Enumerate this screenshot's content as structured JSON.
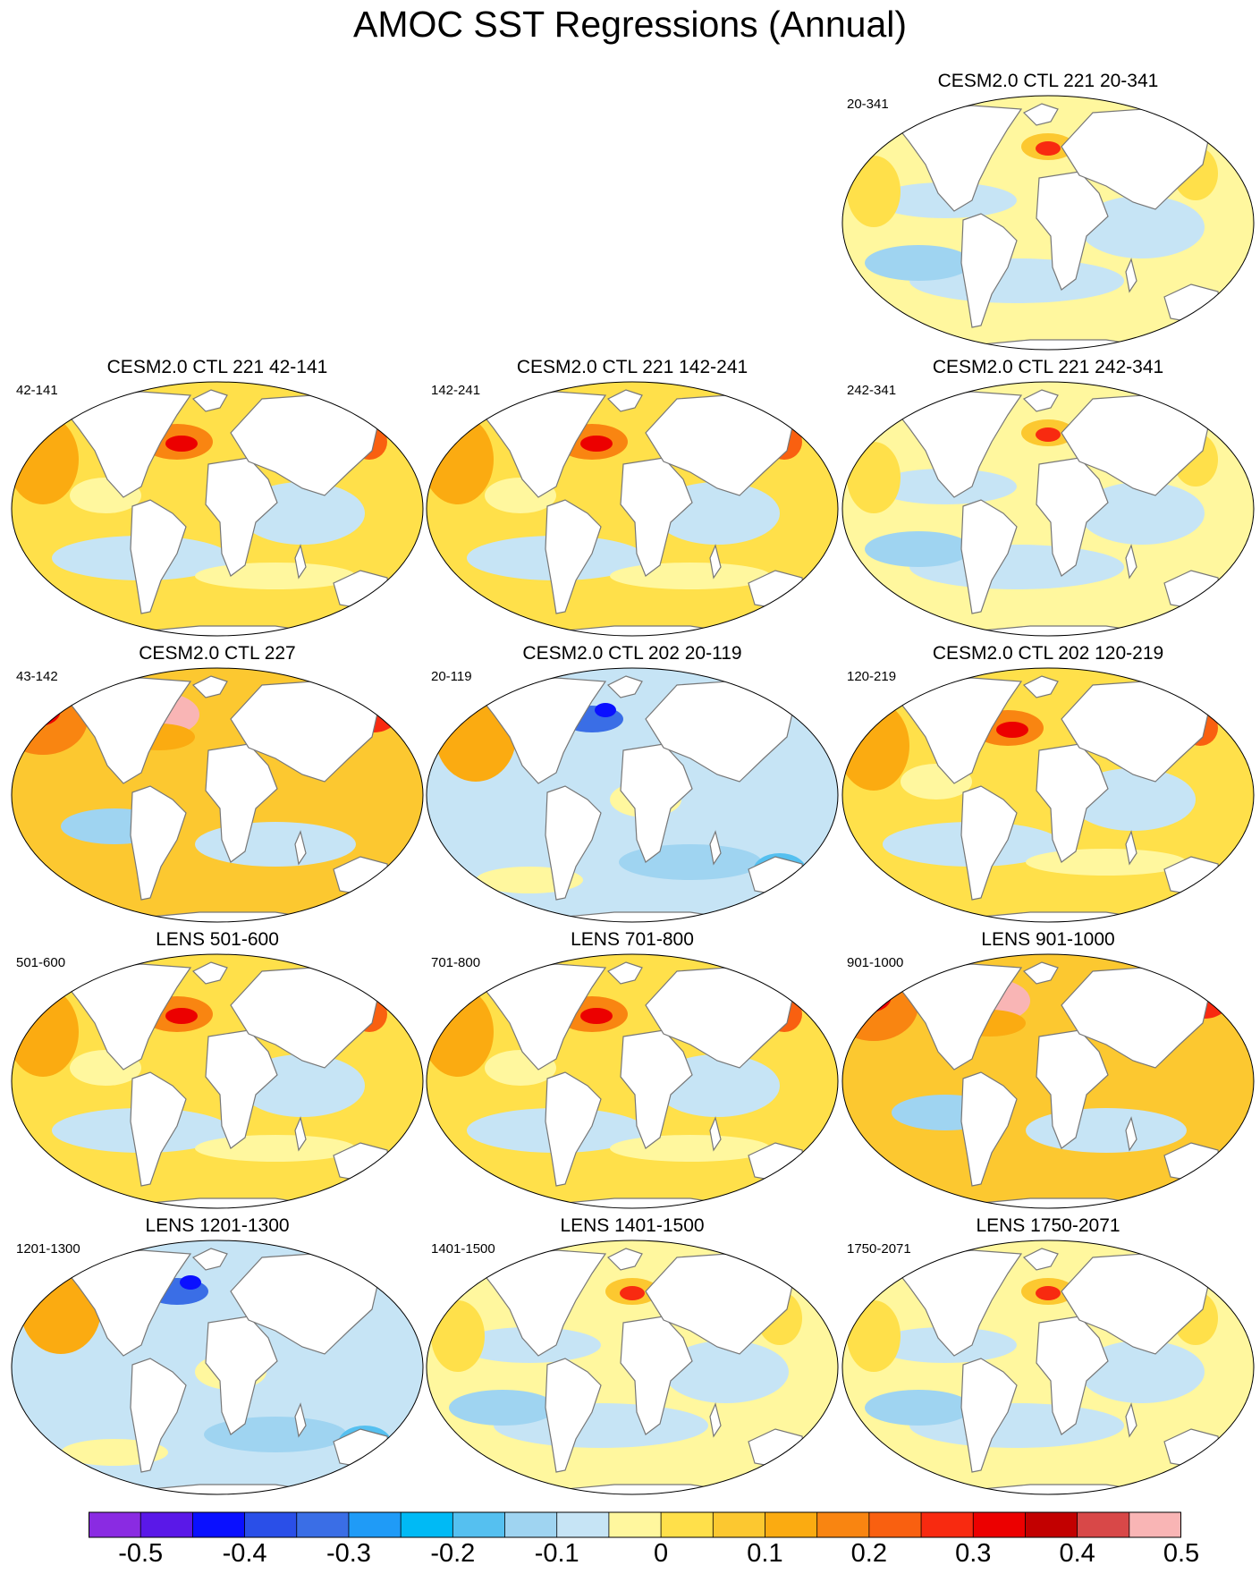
{
  "title": "AMOC SST Regressions (Annual)",
  "panels": [
    {
      "title": "CESM2.0 CTL 221 20-341",
      "label": "20-341",
      "row": 0,
      "col": 2,
      "pattern": "neutral"
    },
    {
      "title": "CESM2.0 CTL 221 42-141",
      "label": "42-141",
      "row": 1,
      "col": 0,
      "pattern": "warm"
    },
    {
      "title": "CESM2.0 CTL 221 142-241",
      "label": "142-241",
      "row": 1,
      "col": 1,
      "pattern": "warm"
    },
    {
      "title": "CESM2.0 CTL 221 242-341",
      "label": "242-341",
      "row": 1,
      "col": 2,
      "pattern": "neutral"
    },
    {
      "title": "CESM2.0 CTL 227",
      "label": "43-142",
      "row": 2,
      "col": 0,
      "pattern": "strong"
    },
    {
      "title": "CESM2.0 CTL 202 20-119",
      "label": "20-119",
      "row": 2,
      "col": 1,
      "pattern": "cool"
    },
    {
      "title": "CESM2.0 CTL 202 120-219",
      "label": "120-219",
      "row": 2,
      "col": 2,
      "pattern": "warm"
    },
    {
      "title": "LENS 501-600",
      "label": "501-600",
      "row": 3,
      "col": 0,
      "pattern": "warm"
    },
    {
      "title": "LENS 701-800",
      "label": "701-800",
      "row": 3,
      "col": 1,
      "pattern": "warm"
    },
    {
      "title": "LENS 901-1000",
      "label": "901-1000",
      "row": 3,
      "col": 2,
      "pattern": "strong"
    },
    {
      "title": "LENS 1201-1300",
      "label": "1201-1300",
      "row": 4,
      "col": 0,
      "pattern": "cool"
    },
    {
      "title": "LENS 1401-1500",
      "label": "1401-1500",
      "row": 4,
      "col": 1,
      "pattern": "neutral"
    },
    {
      "title": "LENS 1750-2071",
      "label": "1750-2071",
      "row": 4,
      "col": 2,
      "pattern": "neutral"
    }
  ],
  "colorbar": {
    "colors": [
      "#8a2be2",
      "#5a18e8",
      "#0a10ff",
      "#2a4fe8",
      "#3a6ee6",
      "#1f9bf7",
      "#00baf5",
      "#55c0f0",
      "#9fd4f1",
      "#c6e4f5",
      "#fff79e",
      "#ffe04a",
      "#fcc830",
      "#fbab11",
      "#f98511",
      "#f96010",
      "#f82a10",
      "#ec0000",
      "#c20000",
      "#d84848",
      "#f9b5b5"
    ],
    "labels": [
      "-0.5",
      "-0.4",
      "-0.3",
      "-0.2",
      "-0.1",
      "0",
      "0.1",
      "0.2",
      "0.3",
      "0.4",
      "0.5"
    ],
    "label_positions": [
      1,
      3,
      5,
      7,
      9,
      11,
      13,
      15,
      17,
      19,
      21
    ]
  }
}
